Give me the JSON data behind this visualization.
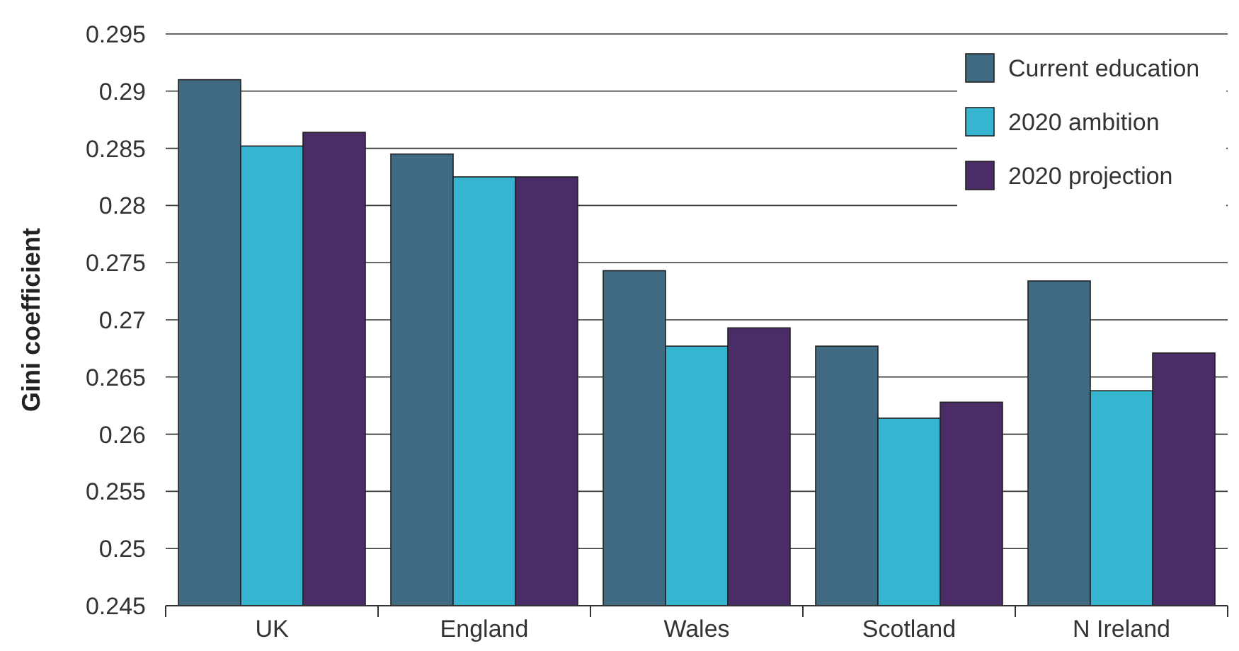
{
  "chart_data": {
    "type": "bar",
    "ylabel": "Gini coefficient",
    "categories": [
      "UK",
      "England",
      "Wales",
      "Scotland",
      "N Ireland"
    ],
    "series": [
      {
        "name": "Current education",
        "color": "#3f6a82",
        "values": [
          0.291,
          0.2845,
          0.2743,
          0.2677,
          0.2734
        ]
      },
      {
        "name": "2020 ambition",
        "color": "#35b5d0",
        "values": [
          0.2852,
          0.2825,
          0.2677,
          0.2614,
          0.2638
        ]
      },
      {
        "name": "2020 projection",
        "color": "#4a2c66",
        "values": [
          0.2864,
          0.2825,
          0.2693,
          0.2628,
          0.2671
        ]
      }
    ],
    "ylim": [
      0.245,
      0.295
    ],
    "yticks": [
      0.245,
      0.25,
      0.255,
      0.26,
      0.265,
      0.27,
      0.275,
      0.28,
      0.285,
      0.29,
      0.295
    ],
    "grid": "y",
    "legend": "top right"
  }
}
